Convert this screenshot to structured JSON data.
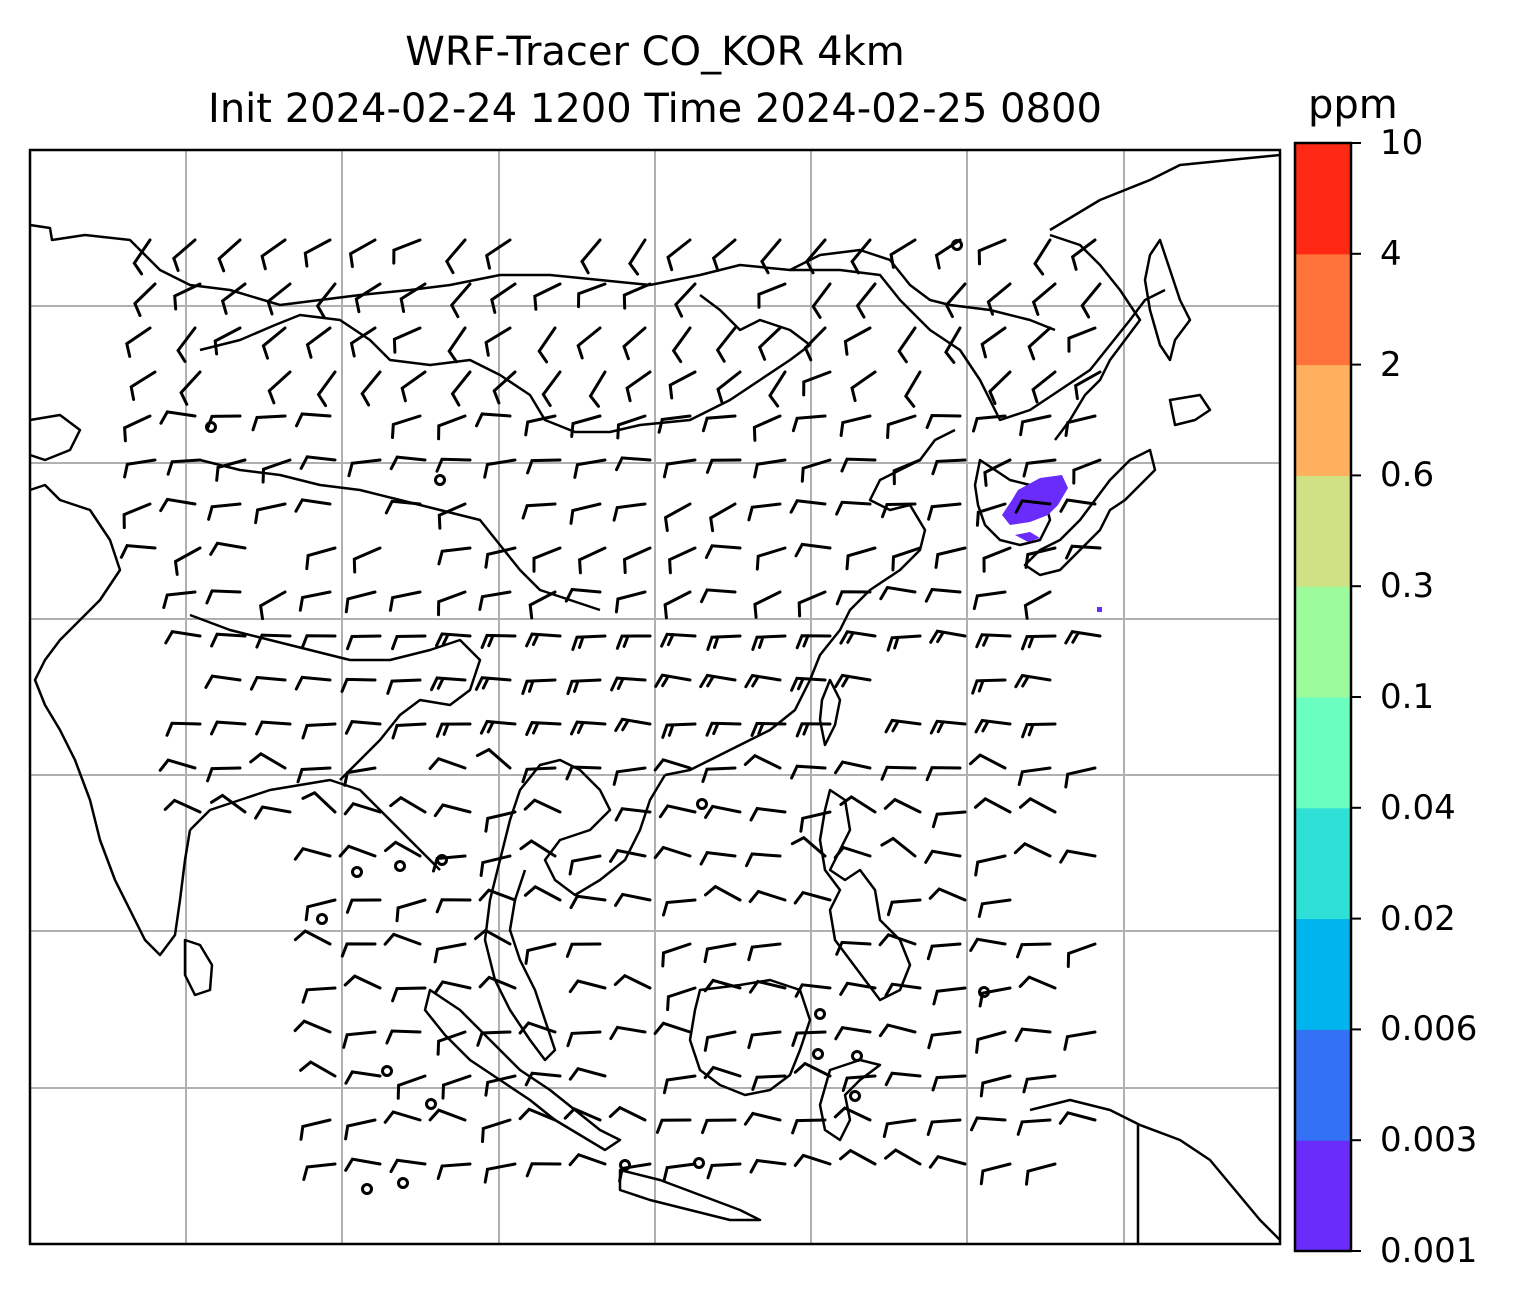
{
  "title": {
    "line1": "WRF-Tracer CO_KOR 4km",
    "line2": "Init 2024-02-24 1200 Time 2024-02-25 0800"
  },
  "colorbar": {
    "unit": "ppm",
    "levels": [
      "0.001",
      "0.003",
      "0.006",
      "0.02",
      "0.04",
      "0.1",
      "0.3",
      "0.6",
      "2",
      "4",
      "10"
    ],
    "colors": [
      "#6a2cfa",
      "#3472f5",
      "#00b4ee",
      "#2ee0d6",
      "#6affc0",
      "#9cfb9a",
      "#cfe183",
      "#ffb05e",
      "#ff733a",
      "#ff2813"
    ]
  },
  "map": {
    "gridlines": "on",
    "wind_barbs": "on",
    "plume_color": "#6a2cfa"
  }
}
